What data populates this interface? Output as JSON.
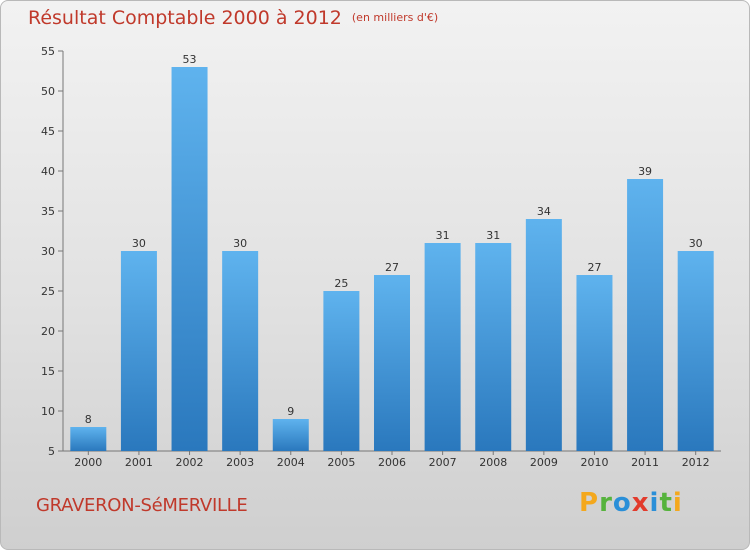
{
  "chart_data": {
    "type": "bar",
    "title": "Résultat Comptable 2000 à 2012",
    "subtitle": "(en milliers d'€)",
    "categories": [
      "2000",
      "2001",
      "2002",
      "2003",
      "2004",
      "2005",
      "2006",
      "2007",
      "2008",
      "2009",
      "2010",
      "2011",
      "2012"
    ],
    "values": [
      8,
      30,
      53,
      30,
      9,
      25,
      27,
      31,
      31,
      34,
      27,
      39,
      30
    ],
    "ylim": [
      5,
      55
    ],
    "yticks": [
      5,
      10,
      15,
      20,
      25,
      30,
      35,
      40,
      45,
      50,
      55
    ],
    "grid": false,
    "bar_color": "#3a8fd6"
  },
  "footer": {
    "commune": "GRAVERON-SéMERVILLE",
    "logo_text": "Proxiti"
  },
  "colors": {
    "title": "#c0392b",
    "bar_light": "#5aaeea",
    "bar_dark": "#2a78bd"
  }
}
